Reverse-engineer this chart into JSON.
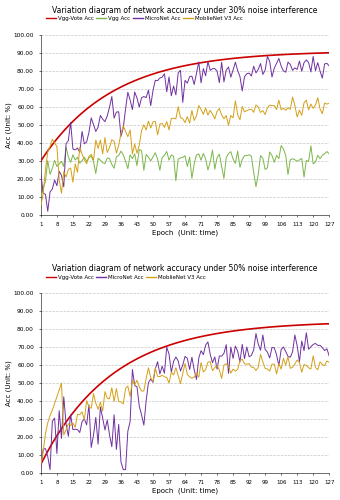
{
  "top_title": "Variation diagram of network accuracy under 30% noise interference",
  "bot_title": "Variation diagram of network accuracy under 50% noise interference",
  "xlabel": "Epoch  (Unit: time)",
  "ylabel": "Acc (Unit: %)",
  "xticks": [
    1,
    8,
    15,
    22,
    29,
    36,
    43,
    50,
    57,
    64,
    71,
    78,
    85,
    92,
    99,
    106,
    113,
    120,
    127
  ],
  "ylim": [
    0,
    100
  ],
  "yticks": [
    0,
    10,
    20,
    30,
    40,
    50,
    60,
    70,
    80,
    90,
    100
  ],
  "ytick_labels": [
    "0.00",
    "10.00",
    "20.00",
    "30.00",
    "40.00",
    "50.00",
    "60.00",
    "70.00",
    "80.00",
    "90.00",
    "100.00"
  ],
  "colors": {
    "vgg_vote": "#cc0000",
    "vgg": "#7ab648",
    "micronet": "#7030a0",
    "mobilenet": "#d4a017"
  },
  "legend1": [
    "Vgg-Vote Acc",
    "Vgg Acc",
    "MicroNet Acc",
    "MoblieNet V3 Acc"
  ],
  "legend2": [
    "Vgg-Vote Acc",
    "MicroNet Acc",
    "MoblieNet V3 Acc"
  ],
  "background": "#ffffff",
  "grid_color": "#b8b8b8",
  "n_epochs": 127
}
